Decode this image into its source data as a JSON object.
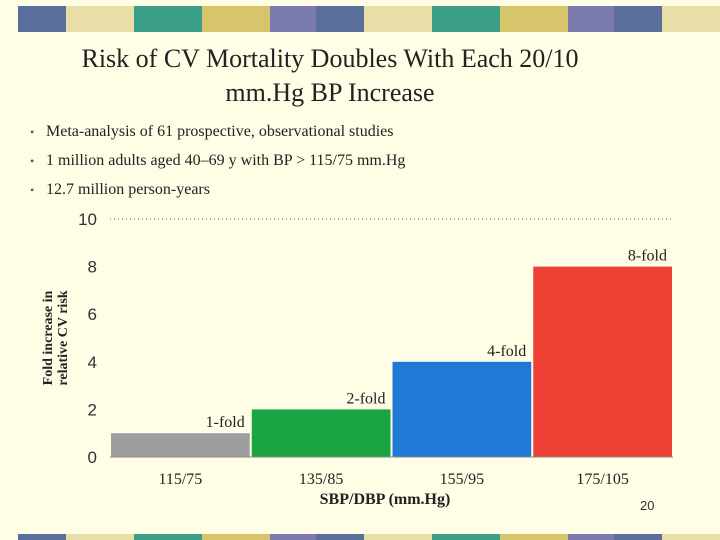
{
  "slide": {
    "title_line1": "Risk of CV Mortality Doubles With Each 20/10",
    "title_line2": "mm.Hg BP Increase",
    "bullets": [
      "Meta-analysis of 61 prospective, observational studies",
      "1 million adults aged 40–69 y with BP > 115/75 mm.Hg",
      "12.7 million person-years"
    ],
    "page_number": "20"
  },
  "colors": {
    "band": [
      "#5a6e9c",
      "#e8dfa8",
      "#3b9e86",
      "#d6c56a",
      "#7b7bb0"
    ],
    "background": "#fffde6"
  },
  "chart_data": {
    "type": "bar",
    "title": "",
    "xlabel": "SBP/DBP (mm.Hg)",
    "ylabel_line1": "Fold increase in",
    "ylabel_line2": "relative CV risk",
    "categories": [
      "115/75",
      "135/85",
      "155/95",
      "175/105"
    ],
    "values": [
      1,
      2,
      4,
      8
    ],
    "data_labels": [
      "1-fold",
      "2-fold",
      "4-fold",
      "8-fold"
    ],
    "bar_colors": [
      "#9e9e9e",
      "#1aa542",
      "#1f7ad6",
      "#ee4035"
    ],
    "yticks": [
      "0",
      "2",
      "4",
      "6",
      "8",
      "10"
    ],
    "ylim": [
      0,
      10
    ],
    "grid": "dotted line at top"
  }
}
